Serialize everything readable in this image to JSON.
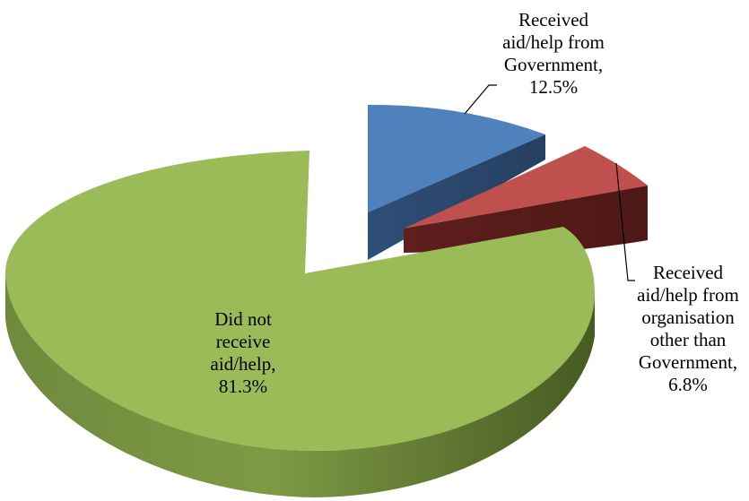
{
  "chart_data": {
    "type": "pie",
    "title": "",
    "slices": [
      {
        "label_lines": [
          "Received",
          "aid/help from",
          "Government,",
          "12.5%"
        ],
        "value": 12.5,
        "color": "#4f81bd"
      },
      {
        "label_lines": [
          "Received",
          "aid/help from",
          "organisation",
          "other than",
          "Government,",
          "6.8%"
        ],
        "value": 6.8,
        "color": "#c0504d"
      },
      {
        "label_lines": [
          "Did not",
          "receive",
          "aid/help,",
          "81.3%"
        ],
        "value": 81.3,
        "color": "#9bbb59"
      }
    ],
    "style": "3d-exploded"
  }
}
